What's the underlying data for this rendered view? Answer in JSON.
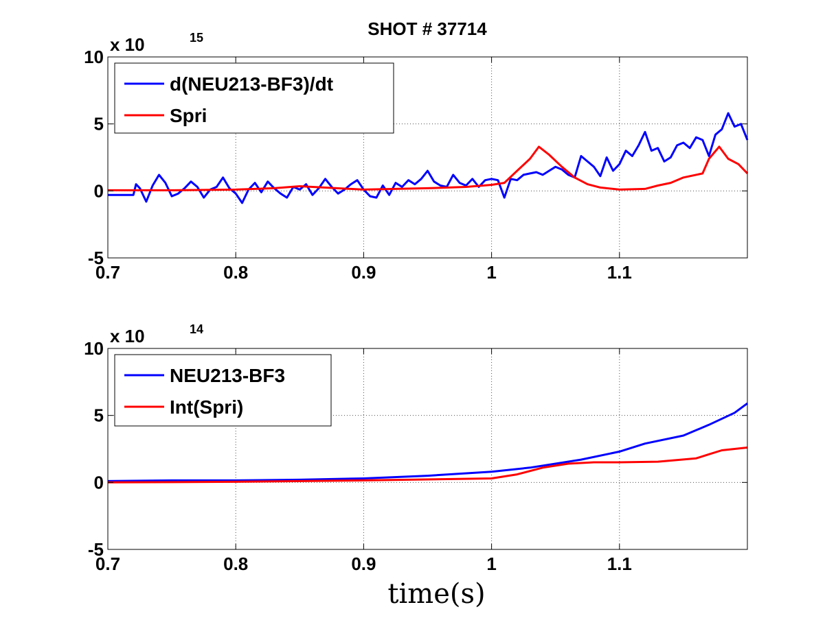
{
  "figure_title": "SHOT # 37714",
  "colors": {
    "series1": "#0000ff",
    "series2": "#ff0000"
  },
  "chart_data": [
    {
      "type": "line",
      "title": "SHOT # 37714",
      "xlabel": "",
      "ylabel": "",
      "xlim": [
        0.7,
        1.2
      ],
      "ylim": [
        -5,
        10
      ],
      "y_exponent_base": "x 10",
      "y_exponent_power": "15",
      "xticks": [
        0.7,
        0.8,
        0.9,
        1.0,
        1.1
      ],
      "xtick_labels": [
        "0.7",
        "0.8",
        "0.9",
        "1",
        "1.1"
      ],
      "yticks": [
        -5,
        0,
        5,
        10
      ],
      "ytick_labels": [
        "-5",
        "0",
        "5",
        "10"
      ],
      "grid": true,
      "legend_position": "top-left",
      "series": [
        {
          "name": "d(NEU213-BF3)/dt",
          "color": "#0000ff",
          "x": [
            0.7,
            0.72,
            0.722,
            0.725,
            0.73,
            0.735,
            0.74,
            0.745,
            0.75,
            0.755,
            0.76,
            0.765,
            0.77,
            0.775,
            0.78,
            0.785,
            0.79,
            0.795,
            0.8,
            0.805,
            0.81,
            0.815,
            0.82,
            0.825,
            0.83,
            0.835,
            0.84,
            0.845,
            0.85,
            0.855,
            0.86,
            0.865,
            0.87,
            0.875,
            0.88,
            0.885,
            0.89,
            0.895,
            0.9,
            0.905,
            0.91,
            0.915,
            0.92,
            0.925,
            0.93,
            0.935,
            0.94,
            0.945,
            0.95,
            0.955,
            0.96,
            0.965,
            0.97,
            0.975,
            0.98,
            0.985,
            0.99,
            0.995,
            1.0,
            1.005,
            1.01,
            1.015,
            1.02,
            1.025,
            1.03,
            1.035,
            1.04,
            1.045,
            1.05,
            1.055,
            1.06,
            1.065,
            1.07,
            1.075,
            1.08,
            1.085,
            1.09,
            1.095,
            1.1,
            1.105,
            1.11,
            1.115,
            1.12,
            1.125,
            1.13,
            1.135,
            1.14,
            1.145,
            1.15,
            1.155,
            1.16,
            1.165,
            1.17,
            1.175,
            1.18,
            1.185,
            1.19,
            1.195,
            1.2
          ],
          "values": [
            -0.3,
            -0.3,
            0.5,
            0.2,
            -0.8,
            0.4,
            1.2,
            0.6,
            -0.4,
            -0.2,
            0.2,
            0.7,
            0.3,
            -0.5,
            0.1,
            0.3,
            1.0,
            0.2,
            -0.2,
            -0.9,
            0.1,
            0.6,
            -0.1,
            0.7,
            0.2,
            -0.2,
            -0.5,
            0.3,
            0.1,
            0.5,
            -0.3,
            0.2,
            0.9,
            0.3,
            -0.2,
            0.1,
            0.5,
            0.8,
            0.1,
            -0.4,
            -0.5,
            0.4,
            -0.3,
            0.6,
            0.3,
            0.8,
            0.5,
            0.9,
            1.5,
            0.7,
            0.4,
            0.3,
            1.2,
            0.6,
            0.4,
            0.9,
            0.3,
            0.8,
            0.9,
            0.8,
            -0.5,
            0.9,
            0.8,
            1.2,
            1.3,
            1.4,
            1.2,
            1.5,
            1.8,
            1.6,
            1.2,
            1.0,
            2.6,
            2.2,
            1.8,
            1.1,
            2.5,
            1.5,
            2.0,
            3.0,
            2.6,
            3.4,
            4.4,
            3.0,
            3.2,
            2.2,
            2.5,
            3.4,
            3.6,
            3.2,
            4.0,
            3.8,
            2.6,
            4.2,
            4.6,
            5.8,
            4.8,
            5.0,
            3.8
          ]
        },
        {
          "name": "Spri",
          "color": "#ff0000",
          "x": [
            0.7,
            0.75,
            0.8,
            0.83,
            0.85,
            0.9,
            0.95,
            0.98,
            1.0,
            1.01,
            1.02,
            1.03,
            1.037,
            1.045,
            1.055,
            1.065,
            1.075,
            1.085,
            1.1,
            1.12,
            1.13,
            1.14,
            1.15,
            1.165,
            1.17,
            1.178,
            1.185,
            1.193,
            1.2
          ],
          "values": [
            0.05,
            0.05,
            0.1,
            0.2,
            0.35,
            0.1,
            0.2,
            0.3,
            0.45,
            0.6,
            1.5,
            2.4,
            3.3,
            2.7,
            1.8,
            1.0,
            0.5,
            0.25,
            0.1,
            0.15,
            0.4,
            0.6,
            1.0,
            1.3,
            2.4,
            3.3,
            2.4,
            2.0,
            1.3
          ]
        }
      ]
    },
    {
      "type": "line",
      "title": "",
      "xlabel": "time(s)",
      "ylabel": "",
      "xlim": [
        0.7,
        1.2
      ],
      "ylim": [
        -5,
        10
      ],
      "y_exponent_base": "x 10",
      "y_exponent_power": "14",
      "xticks": [
        0.7,
        0.8,
        0.9,
        1.0,
        1.1
      ],
      "xtick_labels": [
        "0.7",
        "0.8",
        "0.9",
        "1",
        "1.1"
      ],
      "yticks": [
        -5,
        0,
        5,
        10
      ],
      "ytick_labels": [
        "-5",
        "0",
        "5",
        "10"
      ],
      "grid": true,
      "legend_position": "top-left",
      "series": [
        {
          "name": "NEU213-BF3",
          "color": "#0000ff",
          "x": [
            0.7,
            0.75,
            0.8,
            0.85,
            0.9,
            0.95,
            1.0,
            1.03,
            1.05,
            1.07,
            1.1,
            1.12,
            1.15,
            1.17,
            1.19,
            1.2
          ],
          "values": [
            0.1,
            0.15,
            0.15,
            0.2,
            0.3,
            0.5,
            0.8,
            1.1,
            1.4,
            1.7,
            2.3,
            2.9,
            3.5,
            4.3,
            5.2,
            5.9
          ]
        },
        {
          "name": "Int(Spri)",
          "color": "#ff0000",
          "x": [
            0.7,
            0.8,
            0.9,
            1.0,
            1.02,
            1.04,
            1.06,
            1.08,
            1.1,
            1.13,
            1.16,
            1.17,
            1.18,
            1.2
          ],
          "values": [
            0.0,
            0.05,
            0.15,
            0.3,
            0.6,
            1.1,
            1.4,
            1.5,
            1.5,
            1.55,
            1.8,
            2.1,
            2.4,
            2.6
          ]
        }
      ]
    }
  ]
}
